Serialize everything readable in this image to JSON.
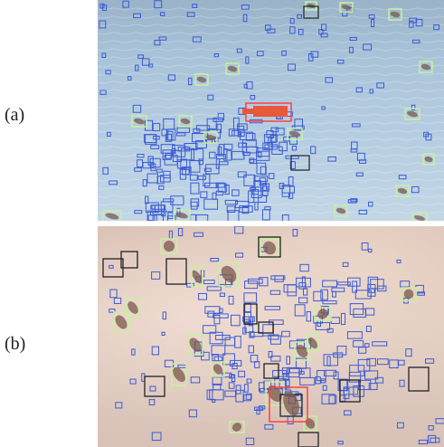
{
  "labels": {
    "panel_a": "(a)",
    "panel_b": "(b)"
  },
  "colors": {
    "small_box": "#3b5bd6",
    "green_box": "#c8f0a0",
    "black_box": "#222222",
    "red_box": "#ff4040",
    "fish": "#7a5a4a",
    "water_a": "#a8c2d8",
    "sand_b": "#dcc6bb"
  }
}
